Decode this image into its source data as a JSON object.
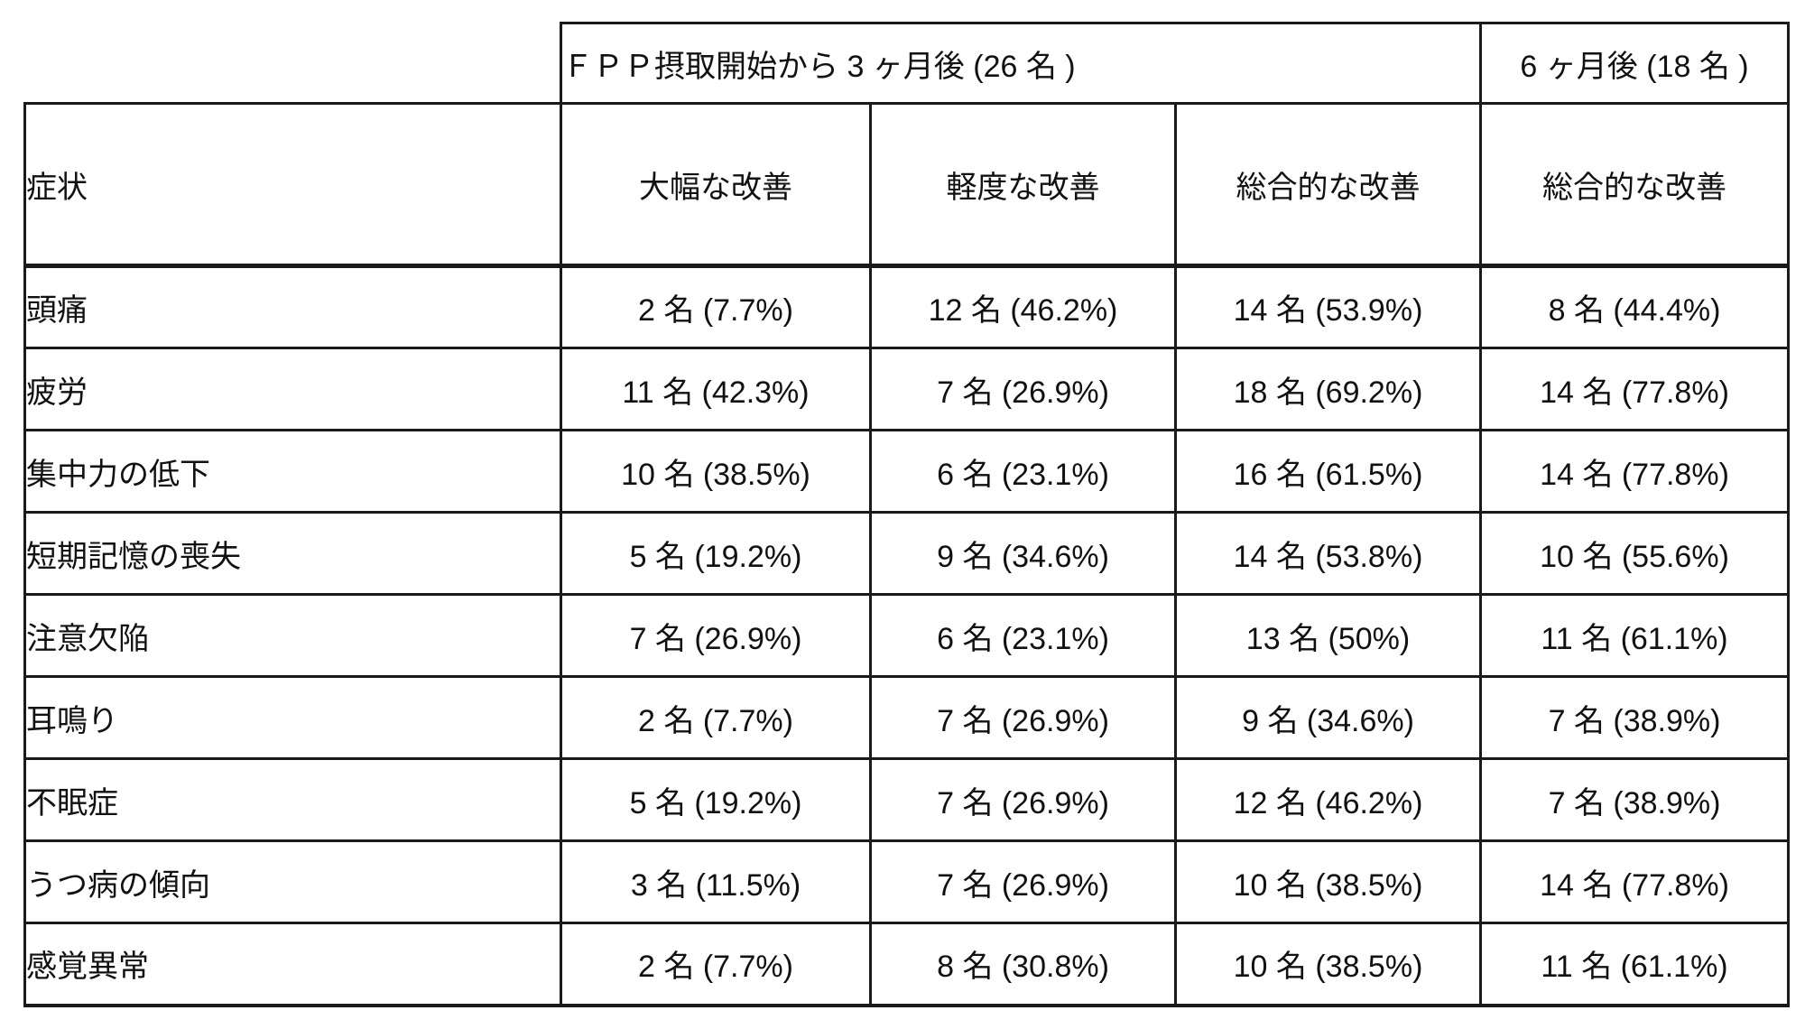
{
  "table": {
    "top_headers": {
      "three_month": "ＦＰＰ摂取開始から 3 ヶ月後 (26 名 )",
      "six_month": "6 ヶ月後 (18 名 )"
    },
    "column_headers": {
      "symptom": "症状",
      "major_improvement": "大幅な改善",
      "mild_improvement": "軽度な改善",
      "overall_improvement_3m": "総合的な改善",
      "overall_improvement_6m": "総合的な改善"
    },
    "rows": [
      {
        "symptom": "頭痛",
        "major": "2 名 (7.7%)",
        "mild": "12 名 (46.2%)",
        "overall3m": "14 名 (53.9%)",
        "overall6m": "8 名 (44.4%)"
      },
      {
        "symptom": "疲労",
        "major": "11 名 (42.3%)",
        "mild": "7 名 (26.9%)",
        "overall3m": "18 名 (69.2%)",
        "overall6m": "14 名 (77.8%)"
      },
      {
        "symptom": "集中力の低下",
        "major": "10 名 (38.5%)",
        "mild": "6 名 (23.1%)",
        "overall3m": "16 名 (61.5%)",
        "overall6m": "14 名 (77.8%)"
      },
      {
        "symptom": "短期記憶の喪失",
        "major": "5 名 (19.2%)",
        "mild": "9 名 (34.6%)",
        "overall3m": "14 名 (53.8%)",
        "overall6m": "10 名 (55.6%)"
      },
      {
        "symptom": "注意欠陥",
        "major": "7 名 (26.9%)",
        "mild": "6 名 (23.1%)",
        "overall3m": "13 名 (50%)",
        "overall6m": "11 名 (61.1%)"
      },
      {
        "symptom": "耳鳴り",
        "major": "2 名 (7.7%)",
        "mild": "7 名 (26.9%)",
        "overall3m": "9 名 (34.6%)",
        "overall6m": "7 名 (38.9%)"
      },
      {
        "symptom": "不眠症",
        "major": "5 名 (19.2%)",
        "mild": "7 名 (26.9%)",
        "overall3m": "12 名 (46.2%)",
        "overall6m": "7 名 (38.9%)"
      },
      {
        "symptom": "うつ病の傾向",
        "major": "3 名 (11.5%)",
        "mild": "7 名 (26.9%)",
        "overall3m": "10 名 (38.5%)",
        "overall6m": "14 名 (77.8%)"
      },
      {
        "symptom": "感覚異常",
        "major": "2 名 (7.7%)",
        "mild": "8 名 (30.8%)",
        "overall3m": "10 名 (38.5%)",
        "overall6m": "11 名 (61.1%)"
      }
    ],
    "colors": {
      "border": "#1a1a1a",
      "text": "#111111",
      "background": "#ffffff"
    }
  }
}
